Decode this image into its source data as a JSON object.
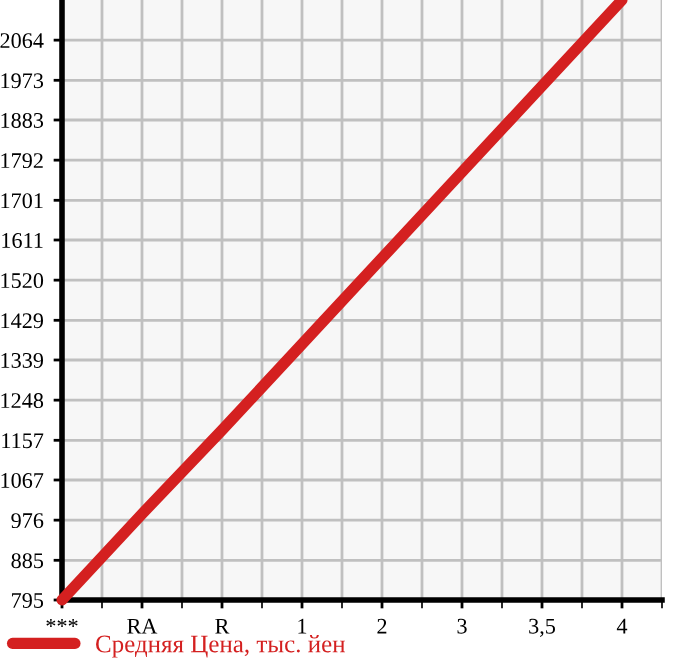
{
  "chart_data": {
    "type": "line",
    "categories": [
      "***",
      "RA",
      "R",
      "1",
      "2",
      "3",
      "3,5",
      "4"
    ],
    "series": [
      {
        "name": "Средняя Цена, тыс. йен",
        "color": "#d42020",
        "values": [
          795,
          990,
          1180,
          1375,
          1570,
          1765,
          1960,
          2155
        ]
      }
    ],
    "ylim": [
      795,
      2155
    ],
    "yticks": [
      795,
      885,
      976,
      1067,
      1157,
      1248,
      1339,
      1429,
      1520,
      1611,
      1701,
      1792,
      1883,
      1973,
      2064
    ],
    "grid": true,
    "legend": "bottom left",
    "marker": "none",
    "line_style": "solid"
  }
}
